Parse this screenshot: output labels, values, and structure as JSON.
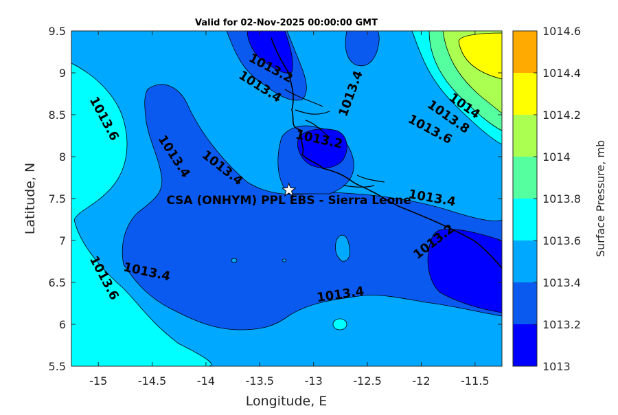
{
  "title": "Valid for 02-Nov-2025 00:00:00 GMT",
  "x_axis": {
    "label": "Longitude, E",
    "range": [
      -15.25,
      -11.25
    ],
    "ticks": [
      -15,
      -14.5,
      -14,
      -13.5,
      -13,
      -12.5,
      -12,
      -11.5
    ],
    "tick_labels": [
      "-15",
      "-14.5",
      "-14",
      "-13.5",
      "-13",
      "-12.5",
      "-12",
      "-11.5"
    ]
  },
  "y_axis": {
    "label": "Latitude, N",
    "range": [
      5.5,
      9.5
    ],
    "ticks": [
      5.5,
      6,
      6.5,
      7,
      7.5,
      8,
      8.5,
      9,
      9.5
    ],
    "tick_labels": [
      "5.5",
      "6",
      "6.5",
      "7",
      "7.5",
      "8",
      "8.5",
      "9",
      "9.5"
    ]
  },
  "colorbar": {
    "label": "Surface Pressure, mb",
    "levels": [
      1013,
      1013.2,
      1013.4,
      1013.6,
      1013.8,
      1014,
      1014.2,
      1014.4,
      1014.6
    ],
    "tick_labels": [
      "1013",
      "1013.2",
      "1013.4",
      "1013.6",
      "1013.8",
      "1014",
      "1014.2",
      "1014.4",
      "1014.6"
    ],
    "colors": [
      "#0000FF",
      "#0A5AF0",
      "#00A8FF",
      "#00FFFF",
      "#55FFA0",
      "#AAFF50",
      "#FFFF00",
      "#FFAA00",
      "#FF5500"
    ]
  },
  "site": {
    "name": "CSA (ONHYM) PPL EBS  - Sierra Leone",
    "lon": -13.23,
    "lat": 7.6,
    "marker": "star-icon"
  },
  "contour_labels": [
    {
      "text": "1013.6",
      "lon": -14.95,
      "lat": 8.45,
      "angle": 62
    },
    {
      "text": "1013.4",
      "lon": -14.3,
      "lat": 8.0,
      "angle": 57
    },
    {
      "text": "1013.4",
      "lon": -13.85,
      "lat": 7.86,
      "angle": 38
    },
    {
      "text": "1013.4",
      "lon": -13.5,
      "lat": 8.83,
      "angle": 32
    },
    {
      "text": "1013.2",
      "lon": -13.4,
      "lat": 9.05,
      "angle": 28
    },
    {
      "text": "1013.4",
      "lon": -12.65,
      "lat": 8.75,
      "angle": -70
    },
    {
      "text": "1013.2",
      "lon": -12.95,
      "lat": 8.2,
      "angle": 12
    },
    {
      "text": "1014",
      "lon": -11.6,
      "lat": 8.6,
      "angle": 35
    },
    {
      "text": "1013.8",
      "lon": -11.75,
      "lat": 8.47,
      "angle": 35
    },
    {
      "text": "1013.6",
      "lon": -11.92,
      "lat": 8.32,
      "angle": 28
    },
    {
      "text": "1013.4",
      "lon": -11.9,
      "lat": 7.5,
      "angle": 10
    },
    {
      "text": "1013.2",
      "lon": -11.88,
      "lat": 6.98,
      "angle": -38
    },
    {
      "text": "1013.4",
      "lon": -14.55,
      "lat": 6.62,
      "angle": 12
    },
    {
      "text": "1013.6",
      "lon": -14.95,
      "lat": 6.55,
      "angle": 62
    },
    {
      "text": "1013.4",
      "lon": -12.75,
      "lat": 6.35,
      "angle": -8
    }
  ]
}
